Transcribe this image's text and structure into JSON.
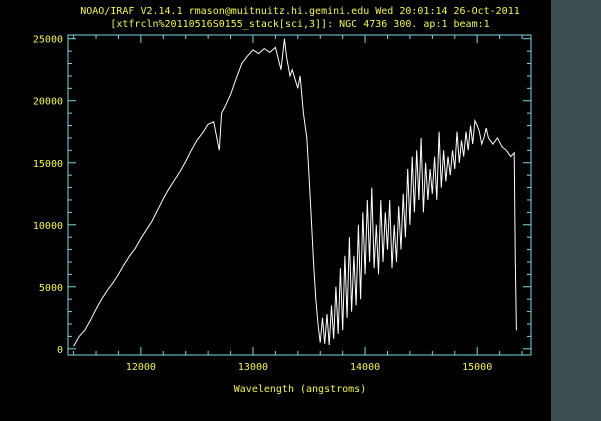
{
  "colors": {
    "background": "#000000",
    "frame": "#3e4d52",
    "axis": "#7fd6e0",
    "text": "#f2f55a",
    "line": "#ffffff"
  },
  "chart_data": {
    "type": "line",
    "title": [
      "NOAO/IRAF V2.14.1 rmason@muitnuitz.hi.gemini.edu Wed 20:01:14 26-Oct-2011",
      "[xtfrcln%20110516S0155_stack[sci,3]]: NGC 4736 300. ap:1 beam:1"
    ],
    "xlabel": "Wavelength (angstroms)",
    "ylabel": "",
    "xlim": [
      11350,
      15480
    ],
    "ylim": [
      -500,
      25300
    ],
    "xticks": [
      12000,
      13000,
      14000,
      15000
    ],
    "yticks": [
      0,
      5000,
      10000,
      15000,
      20000,
      25000
    ],
    "grid": false,
    "series": [
      {
        "values": [
          [
            11400,
            200
          ],
          [
            11450,
            1000
          ],
          [
            11500,
            1500
          ],
          [
            11550,
            2300
          ],
          [
            11600,
            3200
          ],
          [
            11650,
            4000
          ],
          [
            11700,
            4700
          ],
          [
            11750,
            5300
          ],
          [
            11800,
            6000
          ],
          [
            11850,
            6800
          ],
          [
            11900,
            7500
          ],
          [
            11950,
            8100
          ],
          [
            12000,
            8900
          ],
          [
            12050,
            9600
          ],
          [
            12100,
            10300
          ],
          [
            12150,
            11200
          ],
          [
            12200,
            12100
          ],
          [
            12250,
            12900
          ],
          [
            12300,
            13600
          ],
          [
            12350,
            14300
          ],
          [
            12400,
            15100
          ],
          [
            12450,
            16000
          ],
          [
            12500,
            16800
          ],
          [
            12550,
            17400
          ],
          [
            12600,
            18100
          ],
          [
            12650,
            18300
          ],
          [
            12700,
            16000
          ],
          [
            12720,
            19000
          ],
          [
            12750,
            19500
          ],
          [
            12800,
            20500
          ],
          [
            12850,
            21800
          ],
          [
            12900,
            23000
          ],
          [
            12950,
            23600
          ],
          [
            13000,
            24100
          ],
          [
            13050,
            23800
          ],
          [
            13100,
            24200
          ],
          [
            13150,
            23900
          ],
          [
            13200,
            24300
          ],
          [
            13250,
            22500
          ],
          [
            13280,
            25000
          ],
          [
            13300,
            23500
          ],
          [
            13330,
            22000
          ],
          [
            13350,
            22500
          ],
          [
            13400,
            21000
          ],
          [
            13420,
            22000
          ],
          [
            13450,
            19000
          ],
          [
            13480,
            17000
          ],
          [
            13500,
            14000
          ],
          [
            13520,
            10500
          ],
          [
            13540,
            7000
          ],
          [
            13560,
            4000
          ],
          [
            13580,
            2000
          ],
          [
            13600,
            500
          ],
          [
            13620,
            2500
          ],
          [
            13640,
            400
          ],
          [
            13660,
            2800
          ],
          [
            13680,
            300
          ],
          [
            13700,
            3500
          ],
          [
            13720,
            800
          ],
          [
            13740,
            5000
          ],
          [
            13760,
            1200
          ],
          [
            13780,
            6500
          ],
          [
            13800,
            1500
          ],
          [
            13820,
            7500
          ],
          [
            13840,
            2500
          ],
          [
            13860,
            9000
          ],
          [
            13880,
            3000
          ],
          [
            13900,
            7500
          ],
          [
            13920,
            3500
          ],
          [
            13940,
            10000
          ],
          [
            13960,
            4000
          ],
          [
            13980,
            11000
          ],
          [
            14000,
            6000
          ],
          [
            14020,
            12000
          ],
          [
            14040,
            7000
          ],
          [
            14060,
            13000
          ],
          [
            14080,
            6500
          ],
          [
            14100,
            10000
          ],
          [
            14120,
            6000
          ],
          [
            14140,
            12000
          ],
          [
            14160,
            7000
          ],
          [
            14180,
            11000
          ],
          [
            14200,
            8000
          ],
          [
            14220,
            12000
          ],
          [
            14240,
            6500
          ],
          [
            14260,
            10000
          ],
          [
            14280,
            7000
          ],
          [
            14300,
            11500
          ],
          [
            14320,
            8000
          ],
          [
            14340,
            12500
          ],
          [
            14360,
            9000
          ],
          [
            14380,
            14500
          ],
          [
            14400,
            10000
          ],
          [
            14420,
            15500
          ],
          [
            14440,
            11000
          ],
          [
            14460,
            16000
          ],
          [
            14480,
            12000
          ],
          [
            14500,
            17000
          ],
          [
            14520,
            11000
          ],
          [
            14540,
            15000
          ],
          [
            14560,
            12000
          ],
          [
            14580,
            14500
          ],
          [
            14600,
            12500
          ],
          [
            14620,
            15500
          ],
          [
            14640,
            12000
          ],
          [
            14660,
            17500
          ],
          [
            14680,
            13000
          ],
          [
            14700,
            16000
          ],
          [
            14720,
            13500
          ],
          [
            14740,
            15500
          ],
          [
            14760,
            14000
          ],
          [
            14780,
            16000
          ],
          [
            14800,
            14500
          ],
          [
            14820,
            17500
          ],
          [
            14840,
            15000
          ],
          [
            14860,
            16800
          ],
          [
            14880,
            15500
          ],
          [
            14900,
            17500
          ],
          [
            14920,
            16000
          ],
          [
            14940,
            18000
          ],
          [
            14960,
            16500
          ],
          [
            14980,
            18400
          ],
          [
            15000,
            18000
          ],
          [
            15020,
            17500
          ],
          [
            15040,
            16500
          ],
          [
            15060,
            17000
          ],
          [
            15080,
            17800
          ],
          [
            15100,
            17000
          ],
          [
            15140,
            16500
          ],
          [
            15180,
            17000
          ],
          [
            15220,
            16300
          ],
          [
            15260,
            16000
          ],
          [
            15300,
            15500
          ],
          [
            15330,
            15800
          ],
          [
            15340,
            7000
          ],
          [
            15350,
            1500
          ]
        ]
      }
    ]
  }
}
